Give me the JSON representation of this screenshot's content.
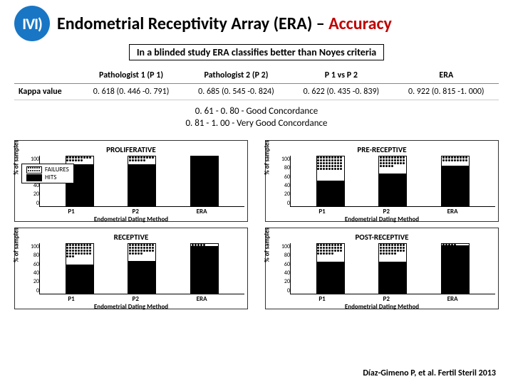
{
  "logo_text": "IVI)",
  "title_main": "Endometrial Receptivity Array (ERA) – ",
  "title_accent": "Accuracy",
  "subtitle": "In a blinded study ERA classifies better than Noyes criteria",
  "table": {
    "row_label": "Kappa value",
    "cols": [
      "Pathologist 1 (P 1)",
      "Pathologist 2 (P 2)",
      "P 1 vs P 2",
      "ERA"
    ],
    "vals": [
      "0. 618 (0. 446 -0. 791)",
      "0. 685 (0. 545 -0. 824)",
      "0. 622 (0. 435 -0. 839)",
      "0. 922 (0. 815 -1. 000)"
    ]
  },
  "concordance_1": "0. 61 - 0. 80 - Good Concordance",
  "concordance_2": "0. 81 - 1. 00 - Very Good Concordance",
  "legend": {
    "failures": "FAILURES",
    "hits": "HITS"
  },
  "ylabel": "% of samples",
  "xlabel": "Endometrial Dating Method",
  "yticks": [
    "100",
    "80",
    "60",
    "40",
    "20",
    "0"
  ],
  "xticks": [
    "P1",
    "P2",
    "ERA"
  ],
  "charts": [
    {
      "title": "PROLIFERATIVE",
      "bars": [
        {
          "hit": 83,
          "fail": 17
        },
        {
          "hit": 83,
          "fail": 17
        },
        {
          "hit": 100,
          "fail": 0
        }
      ]
    },
    {
      "title": "PRE-RECEPTIVE",
      "bars": [
        {
          "hit": 50,
          "fail": 50
        },
        {
          "hit": 65,
          "fail": 35
        },
        {
          "hit": 80,
          "fail": 20
        }
      ]
    },
    {
      "title": "RECEPTIVE",
      "bars": [
        {
          "hit": 57,
          "fail": 43
        },
        {
          "hit": 64,
          "fail": 36
        },
        {
          "hit": 94,
          "fail": 6
        }
      ]
    },
    {
      "title": "POST-RECEPTIVE",
      "bars": [
        {
          "hit": 63,
          "fail": 37
        },
        {
          "hit": 63,
          "fail": 37
        },
        {
          "hit": 95,
          "fail": 5
        }
      ]
    }
  ],
  "citation": "Díaz-Gimeno P, et al.  Fertil Steril 2013",
  "colors": {
    "accent": "#c00000",
    "logo": "#1976c5",
    "hit": "#000000",
    "fail_bg": "#ffffff"
  }
}
